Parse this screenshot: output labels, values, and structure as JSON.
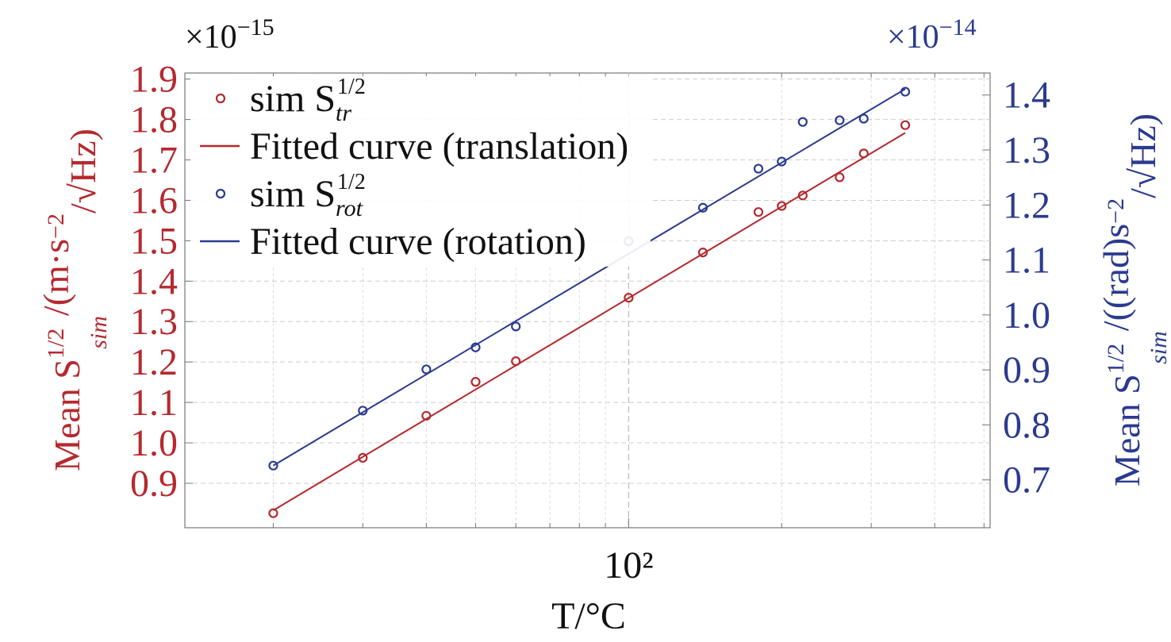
{
  "chart_data": {
    "type": "scatter",
    "xscale": "log",
    "xlim": [
      13.4,
      514
    ],
    "xticks": [
      {
        "value": 100,
        "label": "10²"
      }
    ],
    "xminor": [
      20,
      30,
      40,
      50,
      60,
      70,
      80,
      90,
      200,
      300,
      400,
      500
    ],
    "x_label": "T/°C",
    "ylim": [
      0.79,
      1.915
    ],
    "yticks": [
      {
        "value": 0.9,
        "label": "0.9"
      },
      {
        "value": 1.0,
        "label": "1.0"
      },
      {
        "value": 1.1,
        "label": "1.1"
      },
      {
        "value": 1.2,
        "label": "1.2"
      },
      {
        "value": 1.3,
        "label": "1.3"
      },
      {
        "value": 1.4,
        "label": "1.4"
      },
      {
        "value": 1.5,
        "label": "1.5"
      },
      {
        "value": 1.6,
        "label": "1.6"
      },
      {
        "value": 1.7,
        "label": "1.7"
      },
      {
        "value": 1.8,
        "label": "1.8"
      },
      {
        "value": 1.9,
        "label": "1.9"
      }
    ],
    "y2lim": [
      0.613,
      1.44
    ],
    "y2ticks": [
      {
        "value": 0.7,
        "label": "0.7"
      },
      {
        "value": 0.8,
        "label": "0.8"
      },
      {
        "value": 0.9,
        "label": "0.9"
      },
      {
        "value": 1.0,
        "label": "1.0"
      },
      {
        "value": 1.1,
        "label": "1.1"
      },
      {
        "value": 1.2,
        "label": "1.2"
      },
      {
        "value": 1.3,
        "label": "1.3"
      },
      {
        "value": 1.4,
        "label": "1.4"
      }
    ],
    "y_multiplier": {
      "base": "×10",
      "exp": "−15"
    },
    "y2_multiplier": {
      "base": "×10",
      "exp": "−14"
    },
    "y_label": {
      "parts": [
        "Mean S",
        "1/2",
        "sim",
        "/(m·s",
        "−2",
        "/√Hz)"
      ]
    },
    "y2_label": {
      "parts": [
        "Mean S",
        "1/2",
        "sim",
        "/((rad)s",
        "−2",
        "/√Hz)"
      ]
    },
    "grid": true,
    "legend": "upper left",
    "series": [
      {
        "name": "sim S",
        "name_sup": "1/2",
        "name_sub": "tr",
        "color": "#b5292f",
        "mode": "markers",
        "x": [
          20,
          30,
          40,
          50,
          60,
          100,
          140,
          180,
          200,
          220,
          260,
          290,
          350
        ],
        "values": [
          0.826,
          0.963,
          1.067,
          1.151,
          1.202,
          1.359,
          1.471,
          1.571,
          1.586,
          1.612,
          1.657,
          1.716,
          1.786
        ]
      },
      {
        "name": "Fitted curve (translation)",
        "color": "#b5292f",
        "mode": "line",
        "x": [
          20,
          350
        ],
        "values": [
          0.833,
          1.767
        ]
      },
      {
        "name": "sim S",
        "name_sup": "1/2",
        "name_sub": "rot",
        "color": "#2b3a8f",
        "mode": "markers",
        "axis": "y2",
        "x": [
          20,
          30,
          40,
          50,
          60,
          100,
          140,
          180,
          200,
          220,
          260,
          290,
          350
        ],
        "values": [
          0.726,
          0.826,
          0.901,
          0.941,
          0.979,
          1.134,
          1.195,
          1.266,
          1.279,
          1.351,
          1.354,
          1.357,
          1.406
        ]
      },
      {
        "name": "Fitted curve (rotation)",
        "color": "#2b3a8f",
        "mode": "line",
        "axis": "y2",
        "x": [
          20,
          350
        ],
        "values": [
          0.726,
          1.411
        ]
      }
    ]
  }
}
